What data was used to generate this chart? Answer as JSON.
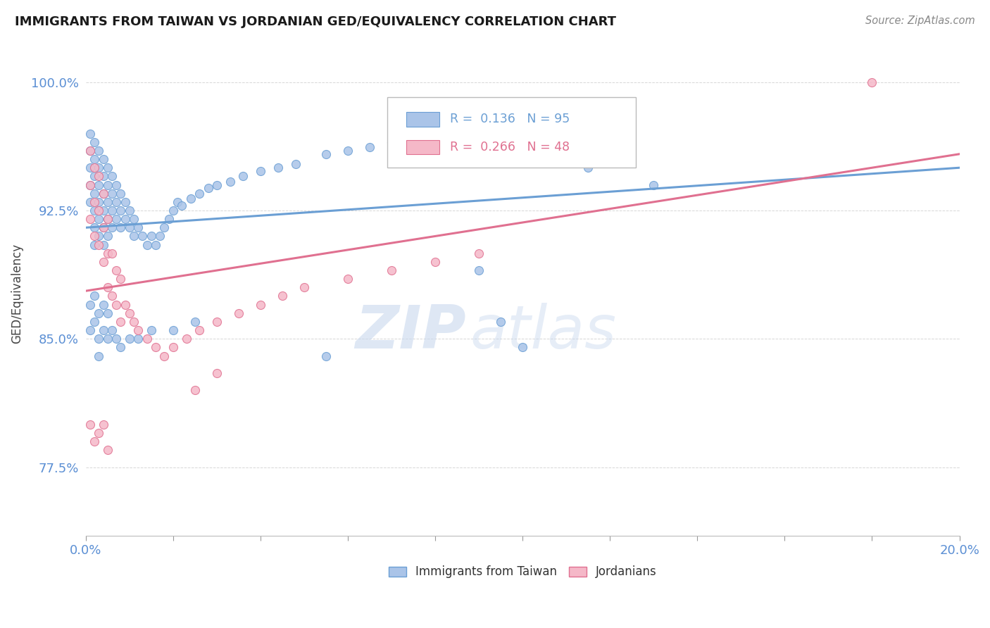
{
  "title": "IMMIGRANTS FROM TAIWAN VS JORDANIAN GED/EQUIVALENCY CORRELATION CHART",
  "source": "Source: ZipAtlas.com",
  "ylabel": "GED/Equivalency",
  "yticks": [
    0.775,
    0.85,
    0.925,
    1.0
  ],
  "ytick_labels": [
    "77.5%",
    "85.0%",
    "92.5%",
    "100.0%"
  ],
  "xlim": [
    0.0,
    0.2
  ],
  "ylim": [
    0.735,
    1.018
  ],
  "taiwan_color": "#aac4e8",
  "taiwan_edge": "#6b9fd4",
  "jordan_color": "#f5b8c8",
  "jordan_edge": "#e07090",
  "taiwan_line_color": "#6b9fd4",
  "jordan_line_color": "#e07090",
  "taiwan_R": 0.136,
  "taiwan_N": 95,
  "jordan_R": 0.266,
  "jordan_N": 48,
  "taiwan_line_x": [
    0.0,
    0.2
  ],
  "taiwan_line_y": [
    0.915,
    0.95
  ],
  "jordan_line_x": [
    0.0,
    0.2
  ],
  "jordan_line_y": [
    0.878,
    0.958
  ],
  "watermark_zip": "ZIP",
  "watermark_atlas": "atlas",
  "background_color": "#ffffff",
  "tw_x": [
    0.001,
    0.001,
    0.001,
    0.001,
    0.001,
    0.002,
    0.002,
    0.002,
    0.002,
    0.002,
    0.002,
    0.002,
    0.003,
    0.003,
    0.003,
    0.003,
    0.003,
    0.003,
    0.004,
    0.004,
    0.004,
    0.004,
    0.004,
    0.004,
    0.005,
    0.005,
    0.005,
    0.005,
    0.005,
    0.006,
    0.006,
    0.006,
    0.006,
    0.007,
    0.007,
    0.007,
    0.008,
    0.008,
    0.008,
    0.009,
    0.009,
    0.01,
    0.01,
    0.011,
    0.011,
    0.012,
    0.013,
    0.014,
    0.015,
    0.016,
    0.017,
    0.018,
    0.019,
    0.02,
    0.021,
    0.022,
    0.024,
    0.026,
    0.028,
    0.03,
    0.033,
    0.036,
    0.04,
    0.044,
    0.048,
    0.055,
    0.06,
    0.065,
    0.07,
    0.08,
    0.001,
    0.001,
    0.002,
    0.002,
    0.003,
    0.003,
    0.003,
    0.004,
    0.004,
    0.005,
    0.005,
    0.006,
    0.007,
    0.008,
    0.01,
    0.012,
    0.015,
    0.02,
    0.025,
    0.115,
    0.13,
    0.055,
    0.09,
    0.095,
    0.1
  ],
  "tw_y": [
    0.97,
    0.96,
    0.95,
    0.94,
    0.93,
    0.965,
    0.955,
    0.945,
    0.935,
    0.925,
    0.915,
    0.905,
    0.96,
    0.95,
    0.94,
    0.93,
    0.92,
    0.91,
    0.955,
    0.945,
    0.935,
    0.925,
    0.915,
    0.905,
    0.95,
    0.94,
    0.93,
    0.92,
    0.91,
    0.945,
    0.935,
    0.925,
    0.915,
    0.94,
    0.93,
    0.92,
    0.935,
    0.925,
    0.915,
    0.93,
    0.92,
    0.925,
    0.915,
    0.92,
    0.91,
    0.915,
    0.91,
    0.905,
    0.91,
    0.905,
    0.91,
    0.915,
    0.92,
    0.925,
    0.93,
    0.928,
    0.932,
    0.935,
    0.938,
    0.94,
    0.942,
    0.945,
    0.948,
    0.95,
    0.952,
    0.958,
    0.96,
    0.962,
    0.965,
    0.97,
    0.87,
    0.855,
    0.875,
    0.86,
    0.865,
    0.85,
    0.84,
    0.87,
    0.855,
    0.865,
    0.85,
    0.855,
    0.85,
    0.845,
    0.85,
    0.85,
    0.855,
    0.855,
    0.86,
    0.95,
    0.94,
    0.84,
    0.89,
    0.86,
    0.845
  ],
  "jo_x": [
    0.001,
    0.001,
    0.001,
    0.002,
    0.002,
    0.002,
    0.003,
    0.003,
    0.003,
    0.004,
    0.004,
    0.004,
    0.005,
    0.005,
    0.005,
    0.006,
    0.006,
    0.007,
    0.007,
    0.008,
    0.008,
    0.009,
    0.01,
    0.011,
    0.012,
    0.014,
    0.016,
    0.018,
    0.02,
    0.023,
    0.026,
    0.03,
    0.035,
    0.04,
    0.045,
    0.05,
    0.06,
    0.07,
    0.08,
    0.09,
    0.001,
    0.002,
    0.003,
    0.004,
    0.005,
    0.18,
    0.03,
    0.025
  ],
  "jo_y": [
    0.96,
    0.94,
    0.92,
    0.95,
    0.93,
    0.91,
    0.945,
    0.925,
    0.905,
    0.935,
    0.915,
    0.895,
    0.92,
    0.9,
    0.88,
    0.9,
    0.875,
    0.89,
    0.87,
    0.885,
    0.86,
    0.87,
    0.865,
    0.86,
    0.855,
    0.85,
    0.845,
    0.84,
    0.845,
    0.85,
    0.855,
    0.86,
    0.865,
    0.87,
    0.875,
    0.88,
    0.885,
    0.89,
    0.895,
    0.9,
    0.8,
    0.79,
    0.795,
    0.8,
    0.785,
    1.0,
    0.83,
    0.82
  ]
}
